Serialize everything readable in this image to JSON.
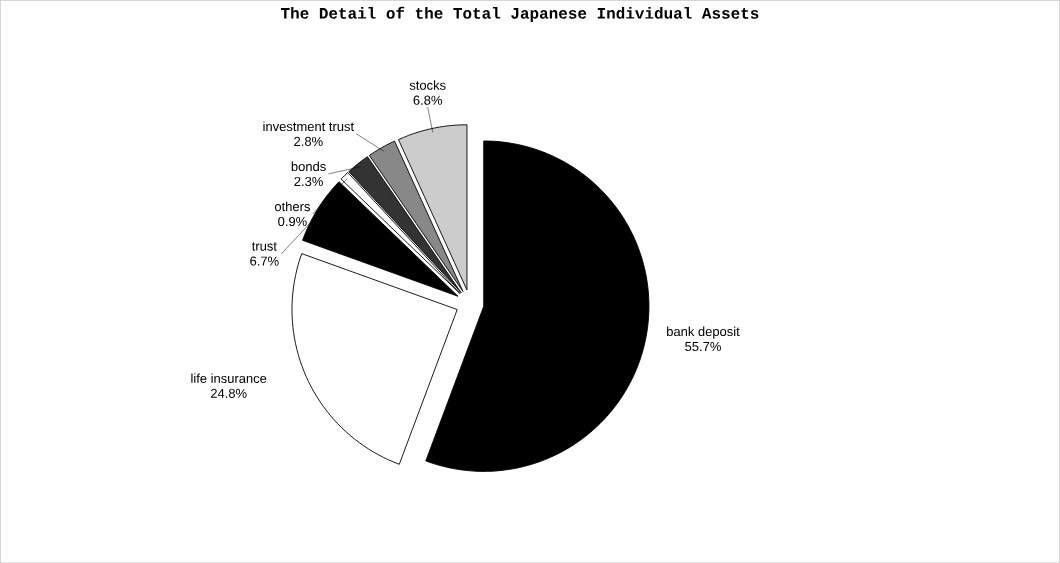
{
  "chart_data": {
    "type": "pie",
    "title": "The Detail of the Total Japanese Individual Assets",
    "categories": [
      "bank deposit",
      "life insurance",
      "trust",
      "others",
      "bonds",
      "investment trust",
      "stocks"
    ],
    "values": [
      55.7,
      24.8,
      6.7,
      0.9,
      2.3,
      2.8,
      6.8
    ],
    "value_labels": [
      "55.7%",
      "24.8%",
      "6.7%",
      "0.9%",
      "2.3%",
      "2.8%",
      "6.8%"
    ],
    "colors": [
      "#000000",
      "#ffffff",
      "#000000",
      "#ffffff",
      "#333333",
      "#888888",
      "#cccccc"
    ]
  }
}
